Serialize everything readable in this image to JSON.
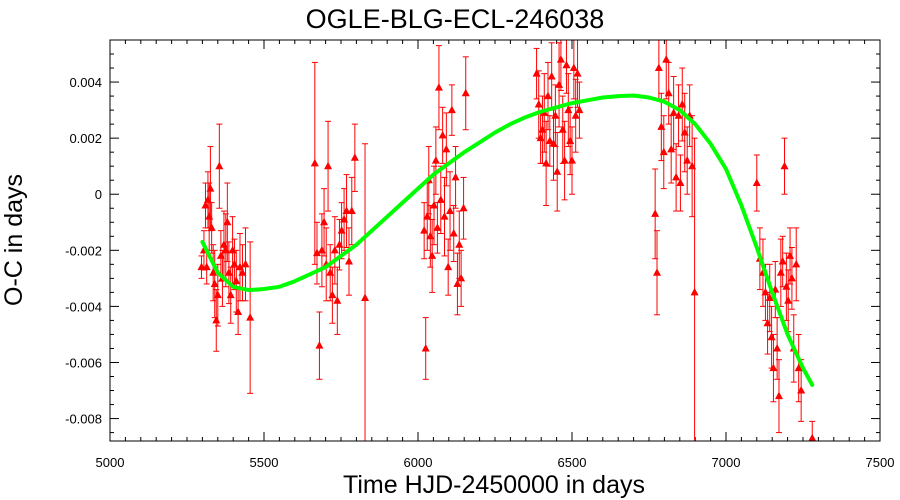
{
  "chart_data": {
    "type": "scatter",
    "title": "OGLE-BLG-ECL-246038",
    "xlabel": "Time HJD-2450000 in days",
    "ylabel": "O-C in days",
    "xlim": [
      5000,
      7500
    ],
    "ylim": [
      -0.0088,
      0.0055
    ],
    "xticks": [
      {
        "value": 5000,
        "label": "5000"
      },
      {
        "value": 5500,
        "label": "5500"
      },
      {
        "value": 6000,
        "label": "6000"
      },
      {
        "value": 6500,
        "label": "6500"
      },
      {
        "value": 7000,
        "label": "7000"
      },
      {
        "value": 7500,
        "label": "7500"
      }
    ],
    "yticks": [
      {
        "value": -0.008,
        "label": "-0.008"
      },
      {
        "value": -0.006,
        "label": "-0.006"
      },
      {
        "value": -0.004,
        "label": "-0.004"
      },
      {
        "value": -0.002,
        "label": "-0.002"
      },
      {
        "value": 0,
        "label": "0"
      },
      {
        "value": 0.002,
        "label": "0.002"
      },
      {
        "value": 0.004,
        "label": "0.004"
      }
    ],
    "grid": false,
    "colors": {
      "points": "#ff0000",
      "fit": "#00ff00"
    },
    "series": [
      {
        "kind": "points-with-errorbars",
        "marker": "triangle",
        "points": [
          {
            "x": 5297,
            "y": -0.0026,
            "err": 0.0004
          },
          {
            "x": 5305,
            "y": -0.002,
            "err": 0.0007
          },
          {
            "x": 5310,
            "y": -0.0004,
            "err": 0.0008
          },
          {
            "x": 5314,
            "y": -0.0026,
            "err": 0.0006
          },
          {
            "x": 5318,
            "y": -0.0002,
            "err": 0.001
          },
          {
            "x": 5322,
            "y": -0.0008,
            "err": 0.0012
          },
          {
            "x": 5326,
            "y": 0.0002,
            "err": 0.0015
          },
          {
            "x": 5330,
            "y": -0.0012,
            "err": 0.0009
          },
          {
            "x": 5335,
            "y": -0.0028,
            "err": 0.001
          },
          {
            "x": 5340,
            "y": -0.0032,
            "err": 0.0012
          },
          {
            "x": 5345,
            "y": -0.0045,
            "err": 0.0011
          },
          {
            "x": 5350,
            "y": -0.0036,
            "err": 0.0011
          },
          {
            "x": 5355,
            "y": 0.001,
            "err": 0.0015
          },
          {
            "x": 5360,
            "y": -0.0022,
            "err": 0.0009
          },
          {
            "x": 5365,
            "y": -0.003,
            "err": 0.001
          },
          {
            "x": 5370,
            "y": -0.0018,
            "err": 0.0012
          },
          {
            "x": 5376,
            "y": -0.002,
            "err": 0.0013
          },
          {
            "x": 5381,
            "y": -0.001,
            "err": 0.0014
          },
          {
            "x": 5386,
            "y": -0.0028,
            "err": 0.0011
          },
          {
            "x": 5392,
            "y": -0.0036,
            "err": 0.001
          },
          {
            "x": 5398,
            "y": -0.002,
            "err": 0.0012
          },
          {
            "x": 5404,
            "y": -0.0025,
            "err": 0.0009
          },
          {
            "x": 5410,
            "y": -0.0031,
            "err": 0.0011
          },
          {
            "x": 5416,
            "y": -0.0042,
            "err": 0.0008
          },
          {
            "x": 5422,
            "y": -0.0026,
            "err": 0.0012
          },
          {
            "x": 5430,
            "y": -0.0028,
            "err": 0.001
          },
          {
            "x": 5440,
            "y": -0.0025,
            "err": 0.0013
          },
          {
            "x": 5455,
            "y": -0.0044,
            "err": 0.0027
          },
          {
            "x": 5665,
            "y": 0.0011,
            "err": 0.0036
          },
          {
            "x": 5672,
            "y": -0.0021,
            "err": 0.0011
          },
          {
            "x": 5680,
            "y": -0.0054,
            "err": 0.0012
          },
          {
            "x": 5688,
            "y": -0.002,
            "err": 0.0013
          },
          {
            "x": 5695,
            "y": -0.001,
            "err": 0.0012
          },
          {
            "x": 5702,
            "y": -0.0025,
            "err": 0.0013
          },
          {
            "x": 5708,
            "y": 0.001,
            "err": 0.0016
          },
          {
            "x": 5715,
            "y": -0.0028,
            "err": 0.001
          },
          {
            "x": 5722,
            "y": -0.0036,
            "err": 0.001
          },
          {
            "x": 5730,
            "y": -0.002,
            "err": 0.0012
          },
          {
            "x": 5738,
            "y": -0.0038,
            "err": 0.0012
          },
          {
            "x": 5745,
            "y": -0.0018,
            "err": 0.0009
          },
          {
            "x": 5752,
            "y": -0.0013,
            "err": 0.001
          },
          {
            "x": 5760,
            "y": -0.0009,
            "err": 0.0011
          },
          {
            "x": 5768,
            "y": -0.0006,
            "err": 0.0013
          },
          {
            "x": 5776,
            "y": -0.0024,
            "err": 0.0012
          },
          {
            "x": 5785,
            "y": -0.0006,
            "err": 0.0012
          },
          {
            "x": 5795,
            "y": 0.0013,
            "err": 0.0012
          },
          {
            "x": 5828,
            "y": -0.0037,
            "err": 0.0055
          },
          {
            "x": 6020,
            "y": -0.0013,
            "err": 0.001
          },
          {
            "x": 6025,
            "y": -0.0055,
            "err": 0.0011
          },
          {
            "x": 6030,
            "y": -0.0008,
            "err": 0.0012
          },
          {
            "x": 6035,
            "y": 0.0005,
            "err": 0.0012
          },
          {
            "x": 6040,
            "y": -0.0015,
            "err": 0.0011
          },
          {
            "x": 6046,
            "y": -0.0022,
            "err": 0.0013
          },
          {
            "x": 6052,
            "y": -0.0004,
            "err": 0.0014
          },
          {
            "x": 6058,
            "y": 0.0012,
            "err": 0.0012
          },
          {
            "x": 6063,
            "y": -0.0012,
            "err": 0.0009
          },
          {
            "x": 6068,
            "y": 0.0038,
            "err": 0.0015
          },
          {
            "x": 6074,
            "y": -0.0002,
            "err": 0.0012
          },
          {
            "x": 6080,
            "y": 0.0021,
            "err": 0.001
          },
          {
            "x": 6086,
            "y": -0.0008,
            "err": 0.0014
          },
          {
            "x": 6092,
            "y": 0.0016,
            "err": 0.0013
          },
          {
            "x": 6098,
            "y": -0.0026,
            "err": 0.001
          },
          {
            "x": 6104,
            "y": -0.0006,
            "err": 0.0014
          },
          {
            "x": 6110,
            "y": 0.003,
            "err": 0.0009
          },
          {
            "x": 6116,
            "y": -0.0014,
            "err": 0.001
          },
          {
            "x": 6122,
            "y": 0.0006,
            "err": 0.0011
          },
          {
            "x": 6128,
            "y": -0.0032,
            "err": 0.0011
          },
          {
            "x": 6134,
            "y": -0.0018,
            "err": 0.0012
          },
          {
            "x": 6140,
            "y": -0.003,
            "err": 0.001
          },
          {
            "x": 6148,
            "y": -0.0005,
            "err": 0.0011
          },
          {
            "x": 6155,
            "y": 0.0036,
            "err": 0.0013
          },
          {
            "x": 6385,
            "y": 0.0043,
            "err": 0.0009
          },
          {
            "x": 6392,
            "y": 0.0032,
            "err": 0.0012
          },
          {
            "x": 6398,
            "y": 0.002,
            "err": 0.0009
          },
          {
            "x": 6404,
            "y": 0.0023,
            "err": 0.0012
          },
          {
            "x": 6410,
            "y": 0.0029,
            "err": 0.0014
          },
          {
            "x": 6416,
            "y": 0.0011,
            "err": 0.0015
          },
          {
            "x": 6422,
            "y": 0.0035,
            "err": 0.0012
          },
          {
            "x": 6428,
            "y": 0.0019,
            "err": 0.0009
          },
          {
            "x": 6434,
            "y": 0.0042,
            "err": 0.0012
          },
          {
            "x": 6440,
            "y": 0.0018,
            "err": 0.0013
          },
          {
            "x": 6446,
            "y": 0.0028,
            "err": 0.0011
          },
          {
            "x": 6452,
            "y": 0.0008,
            "err": 0.0014
          },
          {
            "x": 6458,
            "y": 0.0039,
            "err": 0.0015
          },
          {
            "x": 6464,
            "y": 0.0048,
            "err": 0.0011
          },
          {
            "x": 6470,
            "y": 0.0023,
            "err": 0.0012
          },
          {
            "x": 6476,
            "y": 0.0012,
            "err": 0.0014
          },
          {
            "x": 6482,
            "y": 0.0046,
            "err": 0.001
          },
          {
            "x": 6488,
            "y": 0.003,
            "err": 0.0013
          },
          {
            "x": 6494,
            "y": 0.0019,
            "err": 0.0012
          },
          {
            "x": 6500,
            "y": 0.0012,
            "err": 0.0012
          },
          {
            "x": 6506,
            "y": 0.0045,
            "err": 0.0011
          },
          {
            "x": 6512,
            "y": 0.0028,
            "err": 0.0013
          },
          {
            "x": 6518,
            "y": 0.0043,
            "err": 0.0012
          },
          {
            "x": 6524,
            "y": 0.003,
            "err": 0.001
          },
          {
            "x": 6770,
            "y": -0.0007,
            "err": 0.0016
          },
          {
            "x": 6776,
            "y": -0.0028,
            "err": 0.0015
          },
          {
            "x": 6782,
            "y": 0.0045,
            "err": 0.0011
          },
          {
            "x": 6790,
            "y": 0.0024,
            "err": 0.0012
          },
          {
            "x": 6798,
            "y": 0.0015,
            "err": 0.0013
          },
          {
            "x": 6806,
            "y": 0.0048,
            "err": 0.0014
          },
          {
            "x": 6814,
            "y": 0.0036,
            "err": 0.0011
          },
          {
            "x": 6822,
            "y": 0.0016,
            "err": 0.0012
          },
          {
            "x": 6830,
            "y": 0.0029,
            "err": 0.0013
          },
          {
            "x": 6838,
            "y": 0.0006,
            "err": 0.0012
          },
          {
            "x": 6846,
            "y": 0.0028,
            "err": 0.0011
          },
          {
            "x": 6852,
            "y": 0.0004,
            "err": 0.001
          },
          {
            "x": 6858,
            "y": 0.0032,
            "err": 0.0013
          },
          {
            "x": 6866,
            "y": 0.0022,
            "err": 0.0014
          },
          {
            "x": 6874,
            "y": 0.0012,
            "err": 0.0012
          },
          {
            "x": 6882,
            "y": 0.0028,
            "err": 0.0011
          },
          {
            "x": 6890,
            "y": 0.001,
            "err": 0.0018
          },
          {
            "x": 6898,
            "y": -0.0035,
            "err": 0.0055
          },
          {
            "x": 7100,
            "y": 0.0004,
            "err": 0.001
          },
          {
            "x": 7110,
            "y": -0.0023,
            "err": 0.0011
          },
          {
            "x": 7120,
            "y": -0.0028,
            "err": 0.0012
          },
          {
            "x": 7128,
            "y": -0.0035,
            "err": 0.001
          },
          {
            "x": 7135,
            "y": -0.0046,
            "err": 0.0011
          },
          {
            "x": 7142,
            "y": -0.0037,
            "err": 0.0012
          },
          {
            "x": 7148,
            "y": -0.0051,
            "err": 0.0011
          },
          {
            "x": 7154,
            "y": -0.0062,
            "err": 0.0012
          },
          {
            "x": 7160,
            "y": -0.0034,
            "err": 0.001
          },
          {
            "x": 7166,
            "y": -0.0055,
            "err": 0.0011
          },
          {
            "x": 7172,
            "y": -0.0072,
            "err": 0.0013
          },
          {
            "x": 7178,
            "y": -0.0028,
            "err": 0.0012
          },
          {
            "x": 7184,
            "y": -0.0024,
            "err": 0.0009
          },
          {
            "x": 7190,
            "y": 0.001,
            "err": 0.001
          },
          {
            "x": 7196,
            "y": -0.0033,
            "err": 0.0012
          },
          {
            "x": 7202,
            "y": -0.0038,
            "err": 0.0011
          },
          {
            "x": 7208,
            "y": -0.0022,
            "err": 0.001
          },
          {
            "x": 7214,
            "y": -0.003,
            "err": 0.0011
          },
          {
            "x": 7220,
            "y": -0.0055,
            "err": 0.0012
          },
          {
            "x": 7228,
            "y": -0.0025,
            "err": 0.0013
          },
          {
            "x": 7236,
            "y": -0.0062,
            "err": 0.0012
          },
          {
            "x": 7244,
            "y": -0.007,
            "err": 0.0011
          },
          {
            "x": 7280,
            "y": -0.0087,
            "err": 0.0006
          }
        ]
      },
      {
        "kind": "fit-curve",
        "x": [
          5300,
          5350,
          5400,
          5450,
          5500,
          5550,
          5600,
          5650,
          5700,
          5750,
          5800,
          5850,
          5900,
          5950,
          6000,
          6050,
          6100,
          6150,
          6200,
          6250,
          6300,
          6350,
          6400,
          6450,
          6500,
          6550,
          6600,
          6650,
          6700,
          6750,
          6800,
          6850,
          6900,
          6950,
          7000,
          7050,
          7100,
          7150,
          7200,
          7250,
          7280
        ],
        "y": [
          -0.0017,
          -0.0028,
          -0.0033,
          -0.00342,
          -0.00338,
          -0.0033,
          -0.0031,
          -0.00285,
          -0.0026,
          -0.0022,
          -0.0018,
          -0.0013,
          -0.0008,
          -0.0003,
          0.0002,
          0.0007,
          0.0011,
          0.0015,
          0.00185,
          0.0022,
          0.0025,
          0.00275,
          0.00295,
          0.0031,
          0.00325,
          0.00335,
          0.00345,
          0.0035,
          0.00352,
          0.00345,
          0.0033,
          0.003,
          0.0025,
          0.0018,
          0.0009,
          -0.0004,
          -0.0019,
          -0.0035,
          -0.005,
          -0.0062,
          -0.0068
        ]
      }
    ]
  }
}
